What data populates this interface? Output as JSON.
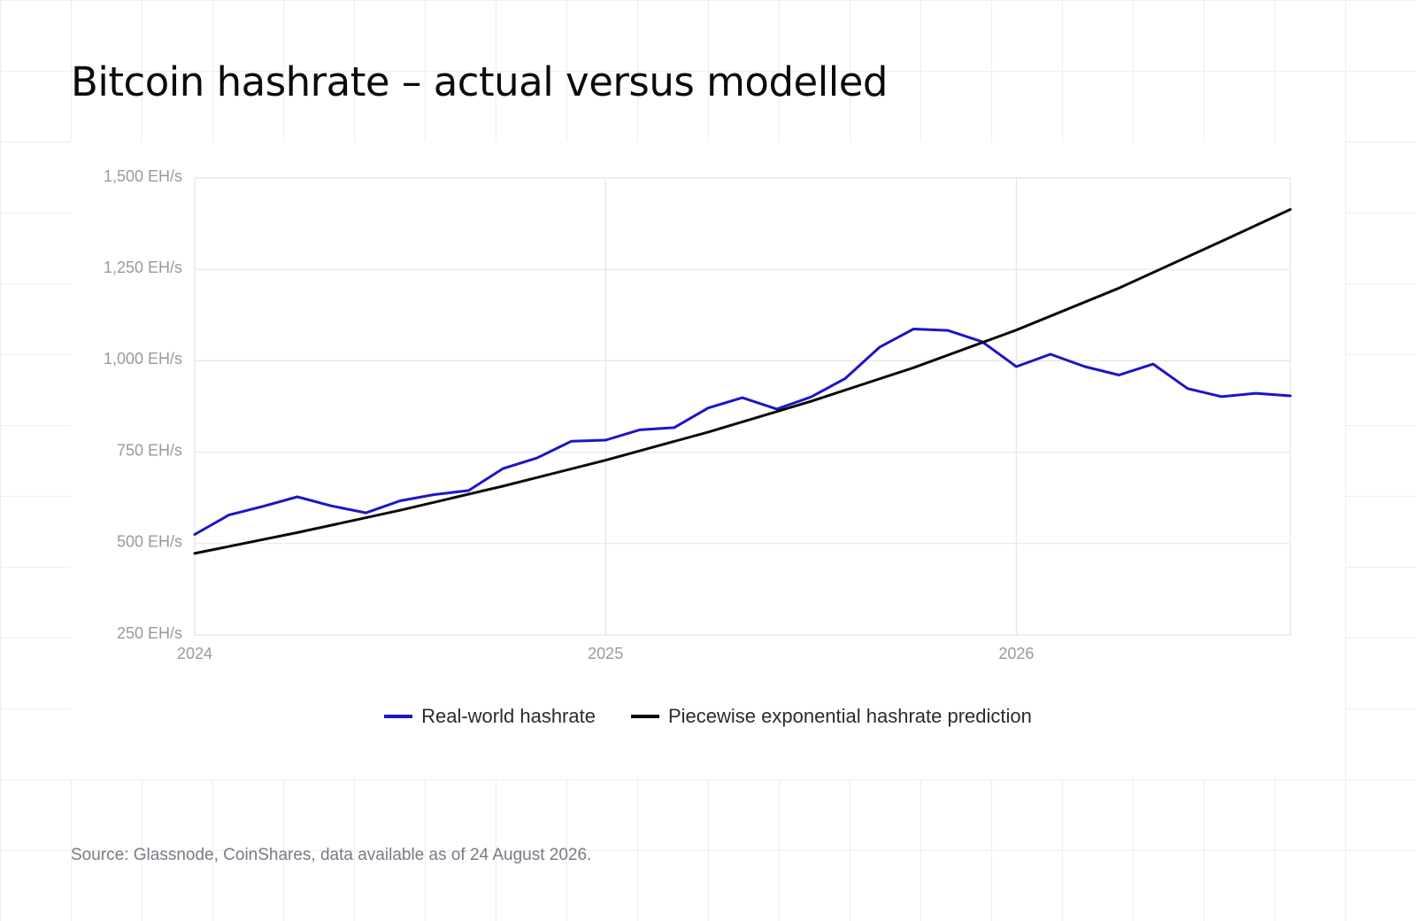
{
  "title": "Bitcoin hashrate – actual versus modelled",
  "source": "Source: Glassnode, CoinShares, data available as of 24 August 2026.",
  "chart_data": {
    "type": "line",
    "y_ticks": [
      "250 EH/s",
      "500 EH/s",
      "750 EH/s",
      "1,000 EH/s",
      "1,250 EH/s",
      "1,500 EH/s"
    ],
    "y_tick_values": [
      250,
      500,
      750,
      1000,
      1250,
      1500
    ],
    "x_ticks": [
      "2024",
      "2025",
      "2026"
    ],
    "x_tick_values": [
      2024,
      2025,
      2026
    ],
    "xlim": [
      2024,
      2026.667
    ],
    "ylim": [
      250,
      1500
    ],
    "grid": true,
    "legend_position": "bottom",
    "series": [
      {
        "name": "Real-world hashrate",
        "color": "#1e14c8",
        "x": [
          2024.0,
          2024.083,
          2024.167,
          2024.25,
          2024.333,
          2024.417,
          2024.5,
          2024.583,
          2024.667,
          2024.75,
          2024.833,
          2024.917,
          2025.0,
          2025.083,
          2025.167,
          2025.25,
          2025.333,
          2025.417,
          2025.5,
          2025.583,
          2025.667,
          2025.75,
          2025.833,
          2025.917,
          2026.0,
          2026.083,
          2026.167,
          2026.25,
          2026.333,
          2026.417,
          2026.5,
          2026.583,
          2026.667
        ],
        "values": [
          525,
          578,
          602,
          628,
          603,
          584,
          617,
          634,
          645,
          705,
          734,
          780,
          783,
          811,
          817,
          871,
          899,
          868,
          901,
          951,
          1037,
          1087,
          1083,
          1052,
          984,
          1018,
          984,
          961,
          991,
          924,
          902,
          911,
          904
        ]
      },
      {
        "name": "Piecewise exponential hashrate prediction",
        "color": "#0a0a0a",
        "x": [
          2024.0,
          2024.25,
          2024.5,
          2024.75,
          2025.0,
          2025.25,
          2025.5,
          2025.75,
          2026.0,
          2026.25,
          2026.5,
          2026.667
        ],
        "values": [
          473,
          530,
          591,
          657,
          728,
          805,
          889,
          981,
          1084,
          1199,
          1327,
          1414
        ]
      }
    ]
  }
}
